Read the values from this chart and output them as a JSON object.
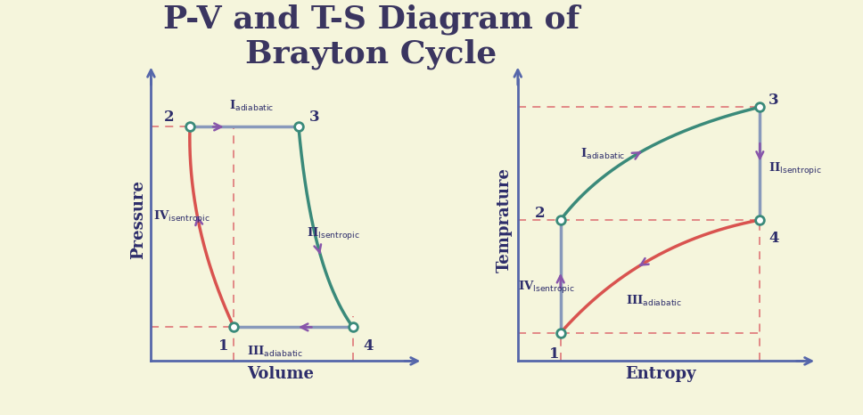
{
  "title_line1": "P-V and T-S Diagram of",
  "title_line2": "Brayton Cycle",
  "title_color": "#3a3560",
  "title_fontsize": 26,
  "bg_color": "#f5f5dc",
  "curve_color_red": "#d9534f",
  "curve_color_teal": "#3a8a7a",
  "curve_color_blue": "#8899bb",
  "arrow_color": "#8855aa",
  "axis_color": "#5566aa",
  "label_color": "#2d2d6b",
  "dashed_color": "#e08080",
  "pv_ylabel": "Pressure",
  "pv_xlabel": "Volume",
  "ts_ylabel": "Temprature",
  "ts_xlabel": "Entropy",
  "point_labels": [
    "1",
    "2",
    "3",
    "4"
  ]
}
